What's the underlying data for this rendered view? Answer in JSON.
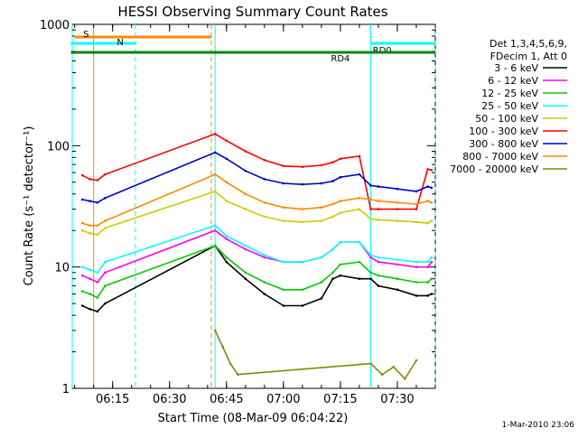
{
  "chart_data": {
    "type": "line",
    "title": "HESSI Observing Summary Count Rates",
    "xlabel": "Start Time (08-Mar-09 06:04:22)",
    "ylabel": "Count Rate (s⁻¹ detector⁻¹)",
    "y_scale": "log",
    "xlim": [
      "06:04:22",
      "07:40:00"
    ],
    "ylim": [
      1,
      1000
    ],
    "x_ticks": [
      "06:15",
      "06:30",
      "06:45",
      "07:00",
      "07:15",
      "07:30"
    ],
    "y_ticks": [
      {
        "value": 1,
        "label": "1"
      },
      {
        "value": 10,
        "label": "10"
      },
      {
        "value": 100,
        "label": "100"
      },
      {
        "value": 1000,
        "label": "1000"
      }
    ],
    "grid": false,
    "legend": {
      "placement": "right",
      "header": [
        "Det 1,3,4,5,6,9,",
        "FDecim 1, Att 0"
      ]
    },
    "series": [
      {
        "name": "3 - 6 keV",
        "color": "#000000",
        "x": [
          "06:07",
          "06:09",
          "06:11",
          "06:13",
          "06:42",
          "06:45",
          "06:50",
          "06:55",
          "07:00",
          "07:05",
          "07:10",
          "07:13",
          "07:15",
          "07:20",
          "07:23",
          "07:25",
          "07:30",
          "07:35",
          "07:38",
          "07:39"
        ],
        "values": [
          4.8,
          4.5,
          4.3,
          5,
          15,
          11,
          8,
          6,
          4.8,
          4.8,
          5.5,
          8,
          8.5,
          8,
          8,
          7,
          6.5,
          5.8,
          5.8,
          6
        ]
      },
      {
        "name": "6 - 12 keV",
        "color": "#ff00ff",
        "x": [
          "06:07",
          "06:09",
          "06:11",
          "06:13",
          "06:42",
          "06:45",
          "06:50",
          "06:55",
          "07:00",
          "07:05",
          "07:10",
          "07:13",
          "07:15",
          "07:20",
          "07:23",
          "07:25",
          "07:30",
          "07:35",
          "07:38",
          "07:39"
        ],
        "values": [
          8.5,
          8,
          7.5,
          9,
          20,
          17,
          14,
          12,
          11,
          11,
          12,
          14,
          16,
          16,
          12,
          11,
          10.5,
          10,
          10,
          11
        ]
      },
      {
        "name": "12 - 25 keV",
        "color": "#00cc00",
        "x": [
          "06:07",
          "06:09",
          "06:11",
          "06:13",
          "06:42",
          "06:45",
          "06:50",
          "06:55",
          "07:00",
          "07:05",
          "07:10",
          "07:13",
          "07:15",
          "07:20",
          "07:23",
          "07:25",
          "07:30",
          "07:35",
          "07:38",
          "07:39"
        ],
        "values": [
          6.3,
          6,
          5.6,
          7,
          15,
          12,
          9,
          7.5,
          6.5,
          6.5,
          7.5,
          9,
          10.5,
          11,
          9,
          8.5,
          8,
          7.5,
          7.5,
          8
        ]
      },
      {
        "name": "25 - 50 keV",
        "color": "#00ffff",
        "x": [
          "06:07",
          "06:09",
          "06:11",
          "06:13",
          "06:42",
          "06:45",
          "06:50",
          "06:55",
          "07:00",
          "07:05",
          "07:10",
          "07:13",
          "07:15",
          "07:20",
          "07:23",
          "07:25",
          "07:30",
          "07:35",
          "07:38",
          "07:39"
        ],
        "values": [
          10,
          9.5,
          9,
          11,
          22,
          18,
          15,
          12.5,
          11,
          11,
          12,
          14,
          16,
          16,
          12.5,
          12,
          11.5,
          11,
          11,
          12
        ]
      },
      {
        "name": "50 - 100 keV",
        "color": "#cccc00",
        "x": [
          "06:07",
          "06:09",
          "06:11",
          "06:13",
          "06:42",
          "06:45",
          "06:50",
          "06:55",
          "07:00",
          "07:05",
          "07:10",
          "07:13",
          "07:15",
          "07:20",
          "07:23",
          "07:25",
          "07:30",
          "07:35",
          "07:38",
          "07:39"
        ],
        "values": [
          20,
          19,
          18.5,
          21,
          42,
          35,
          30,
          26,
          24,
          23.5,
          24,
          26,
          28,
          30,
          25,
          24.5,
          24,
          23.5,
          23,
          24
        ]
      },
      {
        "name": "100 - 300 keV",
        "color": "#ff0000",
        "x": [
          "06:07",
          "06:09",
          "06:11",
          "06:13",
          "06:42",
          "06:45",
          "06:50",
          "06:55",
          "07:00",
          "07:05",
          "07:10",
          "07:13",
          "07:15",
          "07:20",
          "07:23",
          "07:25",
          "07:30",
          "07:35",
          "07:38",
          "07:39"
        ],
        "values": [
          57,
          53,
          52,
          58,
          125,
          110,
          90,
          76,
          68,
          67,
          69,
          73,
          78,
          82,
          30,
          30,
          30,
          30,
          64,
          63
        ]
      },
      {
        "name": "300 - 800 keV",
        "color": "#0000cc",
        "x": [
          "06:07",
          "06:09",
          "06:11",
          "06:13",
          "06:42",
          "06:45",
          "06:50",
          "06:55",
          "07:00",
          "07:05",
          "07:10",
          "07:13",
          "07:15",
          "07:20",
          "07:23",
          "07:25",
          "07:30",
          "07:35",
          "07:38",
          "07:39"
        ],
        "values": [
          36,
          35,
          34,
          37,
          88,
          78,
          62,
          53,
          49,
          48,
          49,
          51,
          55,
          58,
          47,
          46,
          44,
          42,
          46,
          45
        ]
      },
      {
        "name": "800 - 7000 keV",
        "color": "#ff8800",
        "x": [
          "06:07",
          "06:09",
          "06:11",
          "06:13",
          "06:42",
          "06:45",
          "06:50",
          "06:55",
          "07:00",
          "07:05",
          "07:10",
          "07:13",
          "07:15",
          "07:20",
          "07:23",
          "07:25",
          "07:30",
          "07:35",
          "07:38",
          "07:39"
        ],
        "values": [
          23,
          22,
          22,
          24,
          58,
          50,
          40,
          34,
          31,
          30,
          31,
          33,
          35,
          37,
          36,
          35,
          34,
          33,
          35,
          34
        ]
      },
      {
        "name": "7000 - 20000 keV",
        "color": "#888800",
        "x": [
          "06:42",
          "06:44",
          "06:46",
          "06:48",
          "07:23",
          "07:26",
          "07:29",
          "07:32",
          "07:35"
        ],
        "values": [
          3,
          2.2,
          1.6,
          1.3,
          1.6,
          1.3,
          1.5,
          1.2,
          1.7
        ]
      }
    ],
    "annotations": [
      {
        "label": "S",
        "color": "#ff8800",
        "x_start": "06:05",
        "x_end": "06:41"
      },
      {
        "label": "N",
        "color": "#00ffff",
        "x_start": "06:04",
        "x_end": "06:21"
      },
      {
        "label": "RD0",
        "color": "#00ffff",
        "x_start": "07:23",
        "x_end": "07:40"
      },
      {
        "label": "RD4",
        "color": "#008800",
        "x_start": "06:04",
        "x_end": "07:40"
      }
    ],
    "vertical_markers": [
      {
        "x": "06:04:22",
        "color": "#00ffff",
        "style": "solid"
      },
      {
        "x": "06:10",
        "color": "#ff8800",
        "style": "solid"
      },
      {
        "x": "06:21",
        "color": "#00ffff",
        "style": "dashed"
      },
      {
        "x": "06:41",
        "color": "#ff8800",
        "style": "dashed"
      },
      {
        "x": "06:42",
        "color": "#00ffff",
        "style": "solid"
      },
      {
        "x": "07:23",
        "color": "#00ffff",
        "style": "solid"
      },
      {
        "x": "07:40",
        "color": "#00ffff",
        "style": "dashed"
      }
    ]
  },
  "footer": {
    "timestamp": "1-Mar-2010 23:06"
  }
}
